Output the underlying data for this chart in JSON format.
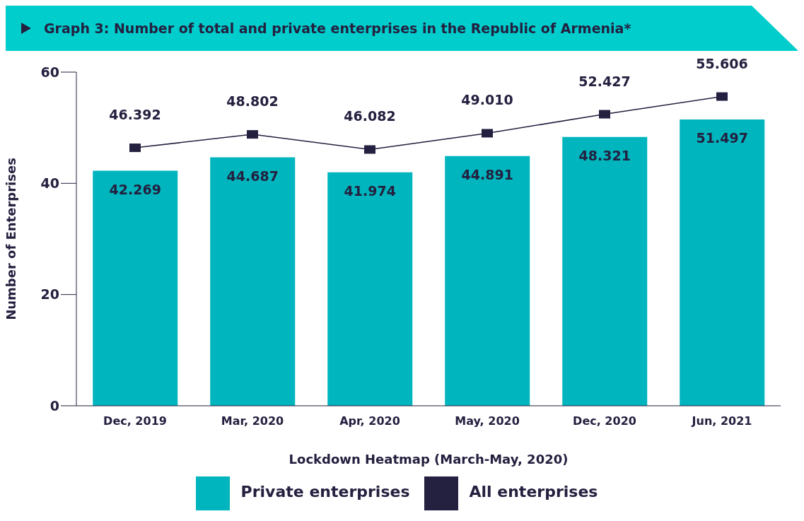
{
  "chart_data": {
    "type": "bar",
    "title": "Graph 3: Number of total and private enterprises in the Republic of Armenia*",
    "xlabel": "Lockdown Heatmap (March-May, 2020)",
    "ylabel": "Number of Enterprises",
    "categories": [
      "Dec, 2019",
      "Mar, 2020",
      "Apr, 2020",
      "May, 2020",
      "Dec, 2020",
      "Jun, 2021"
    ],
    "series": [
      {
        "name": "Private enterprises",
        "color": "#00b5bd",
        "values": [
          42.269,
          44.687,
          41.974,
          44.891,
          48.321,
          51.497
        ],
        "value_labels": [
          "42.269",
          "44.687",
          "41.974",
          "44.891",
          "48.321",
          "51.497"
        ]
      },
      {
        "name": "All enterprises",
        "type": "line",
        "color": "#24203f",
        "values": [
          46.392,
          48.802,
          46.082,
          49.01,
          52.427,
          55.606
        ],
        "value_labels": [
          "46.392",
          "48.802",
          "46.082",
          "49.010",
          "52.427",
          "55.606"
        ]
      }
    ],
    "ylim": [
      0,
      60
    ],
    "yticks": [
      0,
      20,
      40,
      60
    ],
    "legend": "bottom",
    "marker": "square",
    "line_style": "solid"
  }
}
